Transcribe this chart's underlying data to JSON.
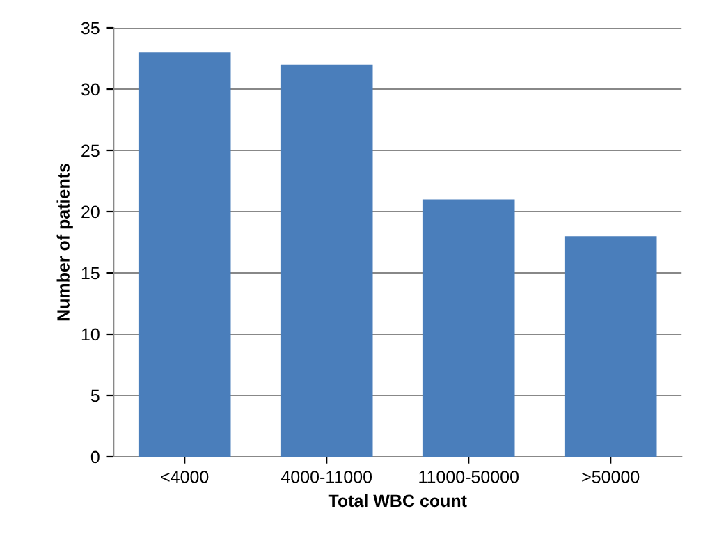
{
  "chart_data": {
    "type": "bar",
    "xlabel": "Total WBC count",
    "ylabel": "Number of patients",
    "categories": [
      "<4000",
      "4000-11000",
      "11000-50000",
      ">50000"
    ],
    "values": [
      33,
      32,
      21,
      18
    ],
    "color": "#4a7ebb",
    "ylim": [
      0,
      35
    ],
    "yticks": [
      0,
      5,
      10,
      15,
      20,
      25,
      30,
      35
    ],
    "grid": "y"
  }
}
